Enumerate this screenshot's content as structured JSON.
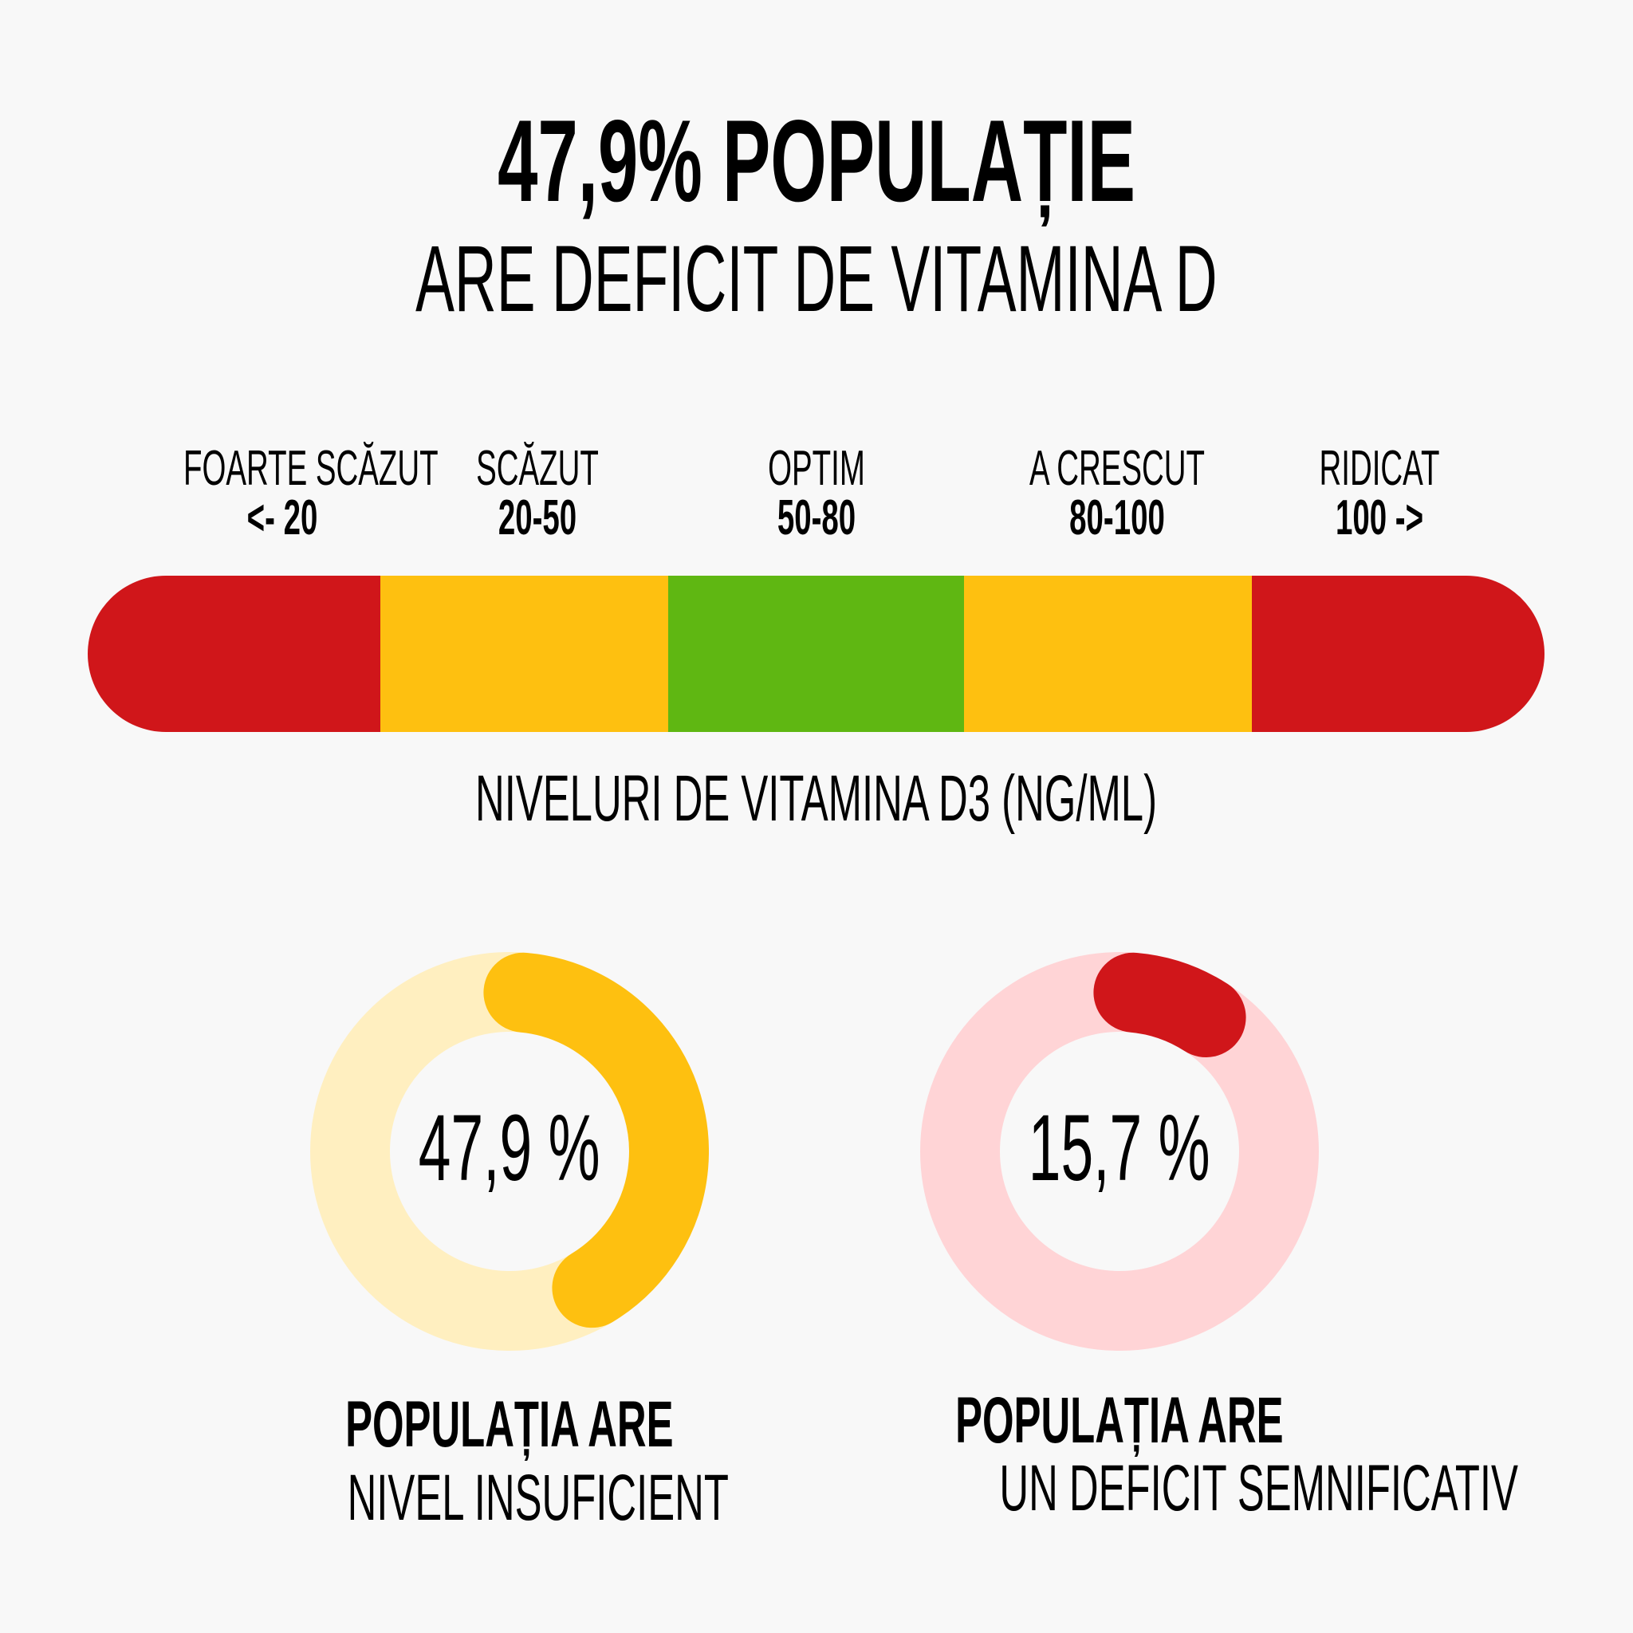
{
  "header": {
    "title": "47,9% POPULAȚIE",
    "subtitle": "ARE DEFICIT DE VITAMINA D"
  },
  "scale": {
    "levels": [
      {
        "name": "FOARTE SCĂZUT",
        "range": "<- 20",
        "color": "#D0161A"
      },
      {
        "name": "SCĂZUT",
        "range": "20-50",
        "color": "#FEC010"
      },
      {
        "name": "OPTIM",
        "range": "50-80",
        "color": "#5FB712"
      },
      {
        "name": "A CRESCUT",
        "range": "80-100",
        "color": "#FEC010"
      },
      {
        "name": "RIDICAT",
        "range": "100 ->",
        "color": "#D0161A"
      }
    ],
    "axis_label": "NIVELURI DE VITAMINA D3 (NG/ML)"
  },
  "stats": [
    {
      "percent": 47.9,
      "label": "47,9 %",
      "caption_bold": "POPULAȚIA ARE",
      "caption": "NIVEL INSUFICIENT",
      "color": "#FEC010",
      "track_color": "#FFEFC0"
    },
    {
      "percent": 15.7,
      "label": "15,7 %",
      "caption_bold": "POPULAȚIA ARE",
      "caption": "UN DEFICIT SEMNIFICATIV",
      "color": "#D0161A",
      "track_color": "#FFD4D6"
    }
  ]
}
